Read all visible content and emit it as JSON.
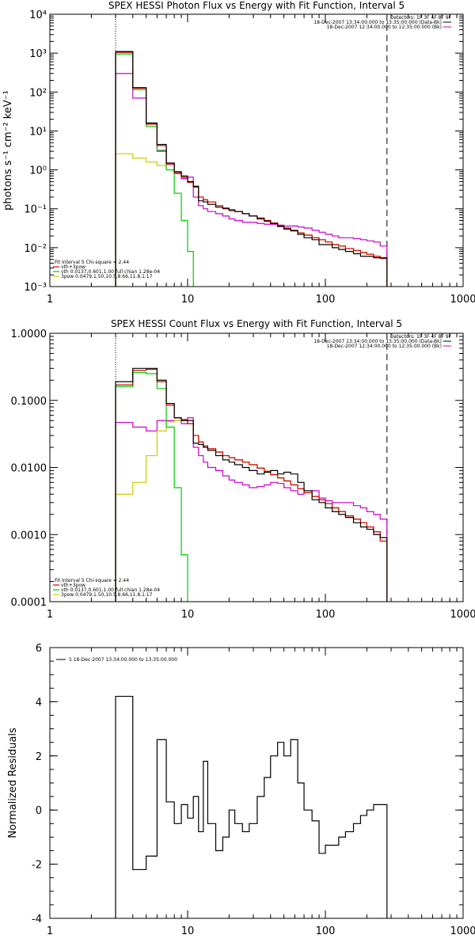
{
  "chart_data": [
    {
      "type": "line",
      "title": "SPEX HESSI Photon Flux vs Energy with Fit Function, Interval 5",
      "ylabel": "photons s⁻¹ cm⁻² keV⁻¹",
      "xlabel": "",
      "xscale": "log",
      "yscale": "log",
      "xlim": [
        1,
        1000
      ],
      "ylim": [
        0.001,
        10000
      ],
      "xticks": [
        "1",
        "10",
        "100",
        "1000"
      ],
      "yticks": [
        "10⁻³",
        "10⁻²",
        "10⁻¹",
        "10⁰",
        "10¹",
        "10²",
        "10³",
        "10⁴"
      ],
      "legend_topright": [
        "Detectors: 1F 3F 4F 8F 9F",
        "18-Dec-2007 13:34:00.000 to 13:35:00.000 (Data-Bk)",
        "18-Dec-2007 12:34:00.000 to 12:35:00.000 (Bk)"
      ],
      "legend_bottomleft": [
        "Fit Interval 5   Chi-square = 2.44",
        "vth+3pow",
        "vth 0.0137,0.601,1.00  full chian 1.28e-04",
        "3pow 0.0479,1.50,10.5,8.66,11.8,1.17"
      ],
      "vlines": [
        3,
        280
      ],
      "edges": [
        3,
        3.5,
        4,
        4.5,
        5,
        5.5,
        6,
        6.5,
        7,
        8,
        9,
        10,
        11,
        12,
        13,
        14,
        16,
        18,
        20,
        22,
        25,
        28,
        32,
        36,
        40,
        45,
        50,
        56,
        63,
        70,
        80,
        90,
        100,
        112,
        125,
        140,
        160,
        180,
        200,
        224,
        250,
        280
      ],
      "series": [
        {
          "name": "18-Dec-2007 13:34:00.000 to 13:35:00.000 (Data-Bk)",
          "color": "#000000",
          "values": [
            1100,
            1100,
            130,
            130,
            16,
            16,
            4.5,
            4.5,
            1.5,
            0.9,
            0.7,
            0.5,
            0.38,
            0.16,
            0.15,
            0.13,
            0.11,
            0.1,
            0.09,
            0.085,
            0.075,
            0.065,
            0.055,
            0.048,
            0.042,
            0.035,
            0.03,
            0.027,
            0.022,
            0.018,
            0.016,
            0.012,
            0.012,
            0.01,
            0.009,
            0.008,
            0.007,
            0.006,
            0.006,
            0.0055,
            0.0055
          ]
        },
        {
          "name": "vth+3pow",
          "color": "#cc0000",
          "values": [
            1050,
            1050,
            125,
            125,
            15,
            15,
            4.2,
            4.2,
            1.4,
            0.85,
            0.65,
            0.48,
            0.36,
            0.2,
            0.17,
            0.15,
            0.12,
            0.105,
            0.095,
            0.085,
            0.075,
            0.065,
            0.058,
            0.05,
            0.043,
            0.037,
            0.032,
            0.028,
            0.024,
            0.021,
            0.018,
            0.016,
            0.014,
            0.012,
            0.011,
            0.0095,
            0.0085,
            0.0075,
            0.0068,
            0.006,
            0.0053
          ]
        },
        {
          "name": "vth 0.0137,0.601,1.00  full chian 1.28e-04",
          "color": "#00cc00",
          "values": [
            950,
            950,
            115,
            115,
            13,
            13,
            3.2,
            3.2,
            1.0,
            0.25,
            0.05,
            0.008,
            0.0009,
            0.0009,
            0.0009,
            0.0009,
            0.0009,
            0.0009,
            0.0009,
            0.0009,
            0.0009,
            0.0009,
            0.0009,
            0.0009,
            0.0009,
            0.0009,
            0.0009,
            0.0009,
            0.0009,
            0.0009,
            0.0009,
            0.0009,
            0.0009,
            0.0009,
            0.0009,
            0.0009,
            0.0009,
            0.0009,
            0.0009,
            0.0009,
            0.0009
          ]
        },
        {
          "name": "3pow 0.0479,1.50,10.5,8.66,11.8,1.17",
          "color": "#cccc00",
          "values": [
            2.6,
            2.6,
            2.0,
            2.0,
            1.6,
            1.6,
            1.3,
            1.3,
            1.0,
            0.85,
            0.65,
            0.48,
            0.36,
            0.2,
            0.17,
            0.15,
            0.12,
            0.105,
            0.095,
            0.085,
            0.075,
            0.065,
            0.058,
            0.05,
            0.043,
            0.037,
            0.032,
            0.028,
            0.024,
            0.021,
            0.018,
            0.016,
            0.014,
            0.012,
            0.011,
            0.0095,
            0.0085,
            0.0075,
            0.0068,
            0.006,
            0.0053
          ]
        },
        {
          "name": "18-Dec-2007 12:34:00.000 to 12:35:00.000 (Bk)",
          "color": "#cc00cc",
          "values": [
            300,
            300,
            70,
            70,
            15,
            15,
            3.0,
            3.0,
            1.5,
            0.8,
            0.6,
            0.65,
            0.2,
            0.12,
            0.1,
            0.085,
            0.075,
            0.065,
            0.055,
            0.05,
            0.045,
            0.045,
            0.042,
            0.04,
            0.04,
            0.038,
            0.036,
            0.036,
            0.034,
            0.032,
            0.028,
            0.025,
            0.022,
            0.02,
            0.018,
            0.018,
            0.017,
            0.016,
            0.015,
            0.014,
            0.011
          ]
        }
      ]
    },
    {
      "type": "line",
      "title": "SPEX HESSI Count Flux vs Energy with Fit Function, Interval 5",
      "ylabel": "",
      "xlabel": "",
      "xscale": "log",
      "yscale": "log",
      "xlim": [
        1,
        1000
      ],
      "ylim": [
        0.0001,
        1
      ],
      "xticks": [
        "1",
        "10",
        "100",
        "1000"
      ],
      "yticks": [
        "0.0001",
        "0.0010",
        "0.0100",
        "0.1000",
        "1.0000"
      ],
      "legend_topright": [
        "Detectors: 1F 3F 4F 8F 9F",
        "18-Dec-2007 13:34:00.000 to 13:35:00.000 (Data-Bk)",
        "18-Dec-2007 12:34:00.000 to 12:35:00.000 (Bk)"
      ],
      "legend_bottomleft": [
        "Fit Interval 5   Chi-square = 2.44",
        "vth+3pow",
        "vth 0.0137,0.601,1.00  full chian 1.28e-04",
        "3pow 0.0479,1.50,10.5,8.66,11.8,1.17"
      ],
      "vlines": [
        3,
        280
      ],
      "edges": [
        3,
        3.5,
        4,
        4.5,
        5,
        5.5,
        6,
        6.5,
        7,
        8,
        9,
        10,
        11,
        12,
        13,
        14,
        16,
        18,
        20,
        22,
        25,
        28,
        32,
        36,
        40,
        45,
        50,
        56,
        63,
        70,
        80,
        90,
        100,
        112,
        125,
        140,
        160,
        180,
        200,
        224,
        250,
        280
      ],
      "series": [
        {
          "name": "18-Dec-2007 13:34:00.000 to 13:35:00.000 (Data-Bk)",
          "color": "#000000",
          "values": [
            0.19,
            0.19,
            0.3,
            0.3,
            0.3,
            0.3,
            0.2,
            0.2,
            0.09,
            0.055,
            0.05,
            0.05,
            0.023,
            0.022,
            0.02,
            0.018,
            0.015,
            0.013,
            0.012,
            0.011,
            0.01,
            0.009,
            0.008,
            0.0085,
            0.009,
            0.008,
            0.0085,
            0.008,
            0.006,
            0.0045,
            0.0033,
            0.003,
            0.0025,
            0.0022,
            0.002,
            0.0018,
            0.0015,
            0.0013,
            0.0012,
            0.001,
            0.0009
          ]
        },
        {
          "name": "vth+3pow",
          "color": "#cc0000",
          "values": [
            0.17,
            0.17,
            0.28,
            0.28,
            0.29,
            0.29,
            0.19,
            0.19,
            0.085,
            0.055,
            0.052,
            0.045,
            0.03,
            0.024,
            0.021,
            0.019,
            0.017,
            0.015,
            0.014,
            0.013,
            0.012,
            0.011,
            0.0098,
            0.0088,
            0.0078,
            0.007,
            0.0063,
            0.0055,
            0.0048,
            0.0042,
            0.0037,
            0.0033,
            0.0029,
            0.0025,
            0.0022,
            0.0019,
            0.0017,
            0.0015,
            0.0013,
            0.0011,
            0.0008
          ]
        },
        {
          "name": "vth 0.0137,0.601,1.00  full chian 1.28e-04",
          "color": "#00cc00",
          "values": [
            0.16,
            0.16,
            0.26,
            0.26,
            0.25,
            0.25,
            0.15,
            0.15,
            0.04,
            0.005,
            0.0005,
            8e-05,
            8e-05,
            8e-05,
            8e-05,
            8e-05,
            8e-05,
            8e-05,
            8e-05,
            8e-05,
            8e-05,
            8e-05,
            8e-05,
            8e-05,
            8e-05,
            8e-05,
            8e-05,
            8e-05,
            8e-05,
            8e-05,
            8e-05,
            8e-05,
            8e-05,
            8e-05,
            8e-05,
            8e-05,
            8e-05,
            8e-05,
            8e-05,
            8e-05,
            8e-05
          ]
        },
        {
          "name": "3pow 0.0479,1.50,10.5,8.66,11.8,1.17",
          "color": "#cccc00",
          "values": [
            0.004,
            0.004,
            0.006,
            0.006,
            0.015,
            0.015,
            0.035,
            0.035,
            0.048,
            0.05,
            0.05,
            0.045,
            0.03,
            0.024,
            0.021,
            0.019,
            0.017,
            0.015,
            0.014,
            0.013,
            0.012,
            0.011,
            0.0098,
            0.0088,
            0.0078,
            0.007,
            0.0063,
            0.0055,
            0.0048,
            0.0042,
            0.0037,
            0.0033,
            0.0029,
            0.0025,
            0.0022,
            0.0019,
            0.0017,
            0.0015,
            0.0013,
            0.0011,
            0.0008
          ]
        },
        {
          "name": "18-Dec-2007 12:34:00.000 to 12:35:00.000 (Bk)",
          "color": "#cc00cc",
          "values": [
            0.047,
            0.047,
            0.04,
            0.04,
            0.035,
            0.035,
            0.05,
            0.05,
            0.05,
            0.05,
            0.045,
            0.055,
            0.02,
            0.015,
            0.012,
            0.01,
            0.009,
            0.0075,
            0.0065,
            0.006,
            0.0055,
            0.005,
            0.0052,
            0.0055,
            0.006,
            0.0058,
            0.005,
            0.0045,
            0.004,
            0.0042,
            0.0045,
            0.0035,
            0.0032,
            0.003,
            0.003,
            0.003,
            0.0027,
            0.0025,
            0.0022,
            0.002,
            0.0017
          ]
        }
      ]
    },
    {
      "type": "line",
      "title": "",
      "ylabel": "Normalized Residuals",
      "xlabel": "",
      "xscale": "log",
      "yscale": "linear",
      "xlim": [
        1,
        1000
      ],
      "ylim": [
        -4,
        6
      ],
      "xticks": [
        "1",
        "10",
        "100",
        "1000"
      ],
      "yticks": [
        "-4",
        "-2",
        "0",
        "2",
        "4",
        "6"
      ],
      "legend_topleft": [
        "5  18-Dec-2007 13:34:00.000 to 13:35:00.000"
      ],
      "edges": [
        3,
        3.5,
        4,
        4.5,
        5,
        5.5,
        6,
        6.5,
        7,
        8,
        9,
        10,
        11,
        12,
        13,
        14,
        16,
        18,
        20,
        22,
        25,
        28,
        32,
        36,
        40,
        45,
        50,
        56,
        63,
        70,
        80,
        90,
        100,
        112,
        125,
        140,
        160,
        180,
        200,
        224,
        250,
        280
      ],
      "series": [
        {
          "name": "5  18-Dec-2007 13:34:00.000 to 13:35:00.000",
          "color": "#000000",
          "values": [
            4.2,
            4.2,
            -2.2,
            -2.2,
            -1.7,
            -1.7,
            2.6,
            2.6,
            0.3,
            -0.5,
            0.2,
            -0.3,
            0.5,
            -0.8,
            1.8,
            -0.5,
            -1.5,
            -1.0,
            0.0,
            -0.5,
            -0.8,
            -0.5,
            0.5,
            1.2,
            2.0,
            2.5,
            2.0,
            2.6,
            1.0,
            0.0,
            -0.4,
            -1.6,
            -1.3,
            -1.3,
            -1.0,
            -0.8,
            -0.5,
            -0.2,
            0.0,
            0.2,
            0.2
          ]
        }
      ]
    }
  ]
}
